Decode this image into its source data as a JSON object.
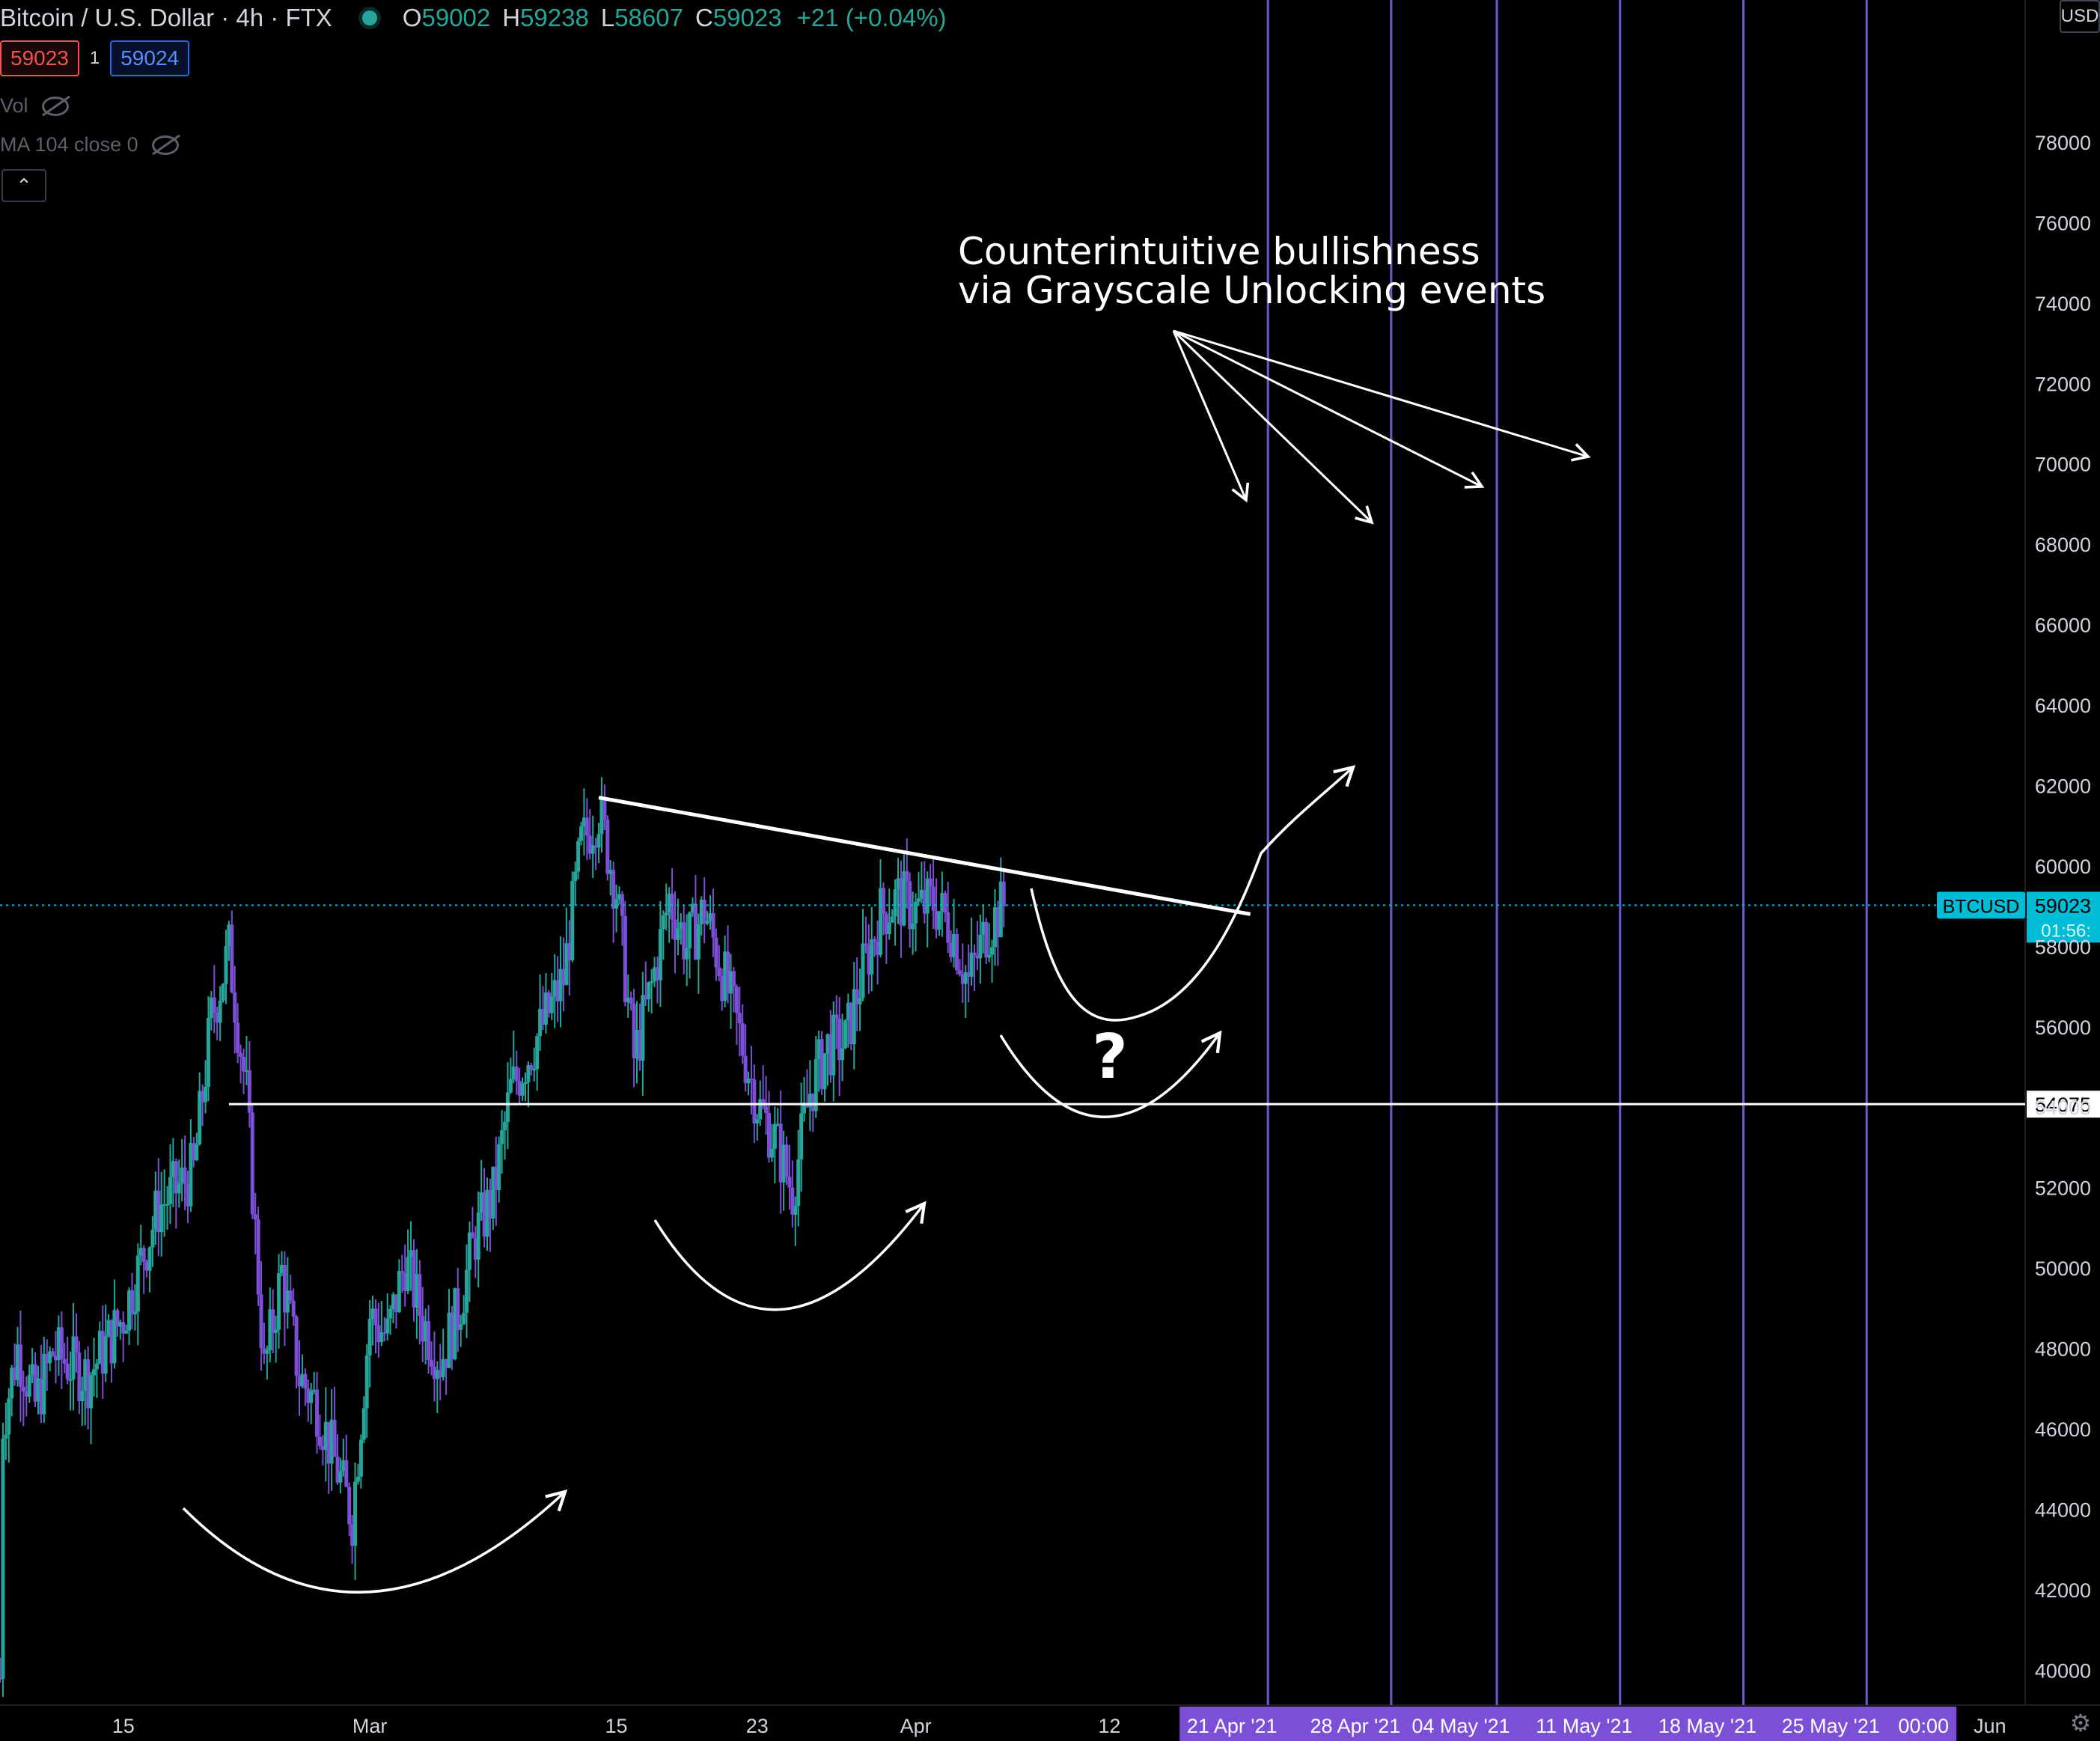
{
  "header": {
    "symbol": "Bitcoin / U.S. Dollar",
    "interval": "4h",
    "exchange": "FTX",
    "open_label": "O",
    "open": "59002",
    "high_label": "H",
    "high": "59238",
    "low_label": "L",
    "low": "58607",
    "close_label": "C",
    "close": "59023",
    "change": "+21 (+0.04%)"
  },
  "quote": {
    "bid": "59023",
    "spread": "1",
    "ask": "59024"
  },
  "indicators": {
    "vol": "Vol",
    "ma": "MA 104 close 0",
    "collapse_icon": "chevron-up-icon"
  },
  "price_axis": {
    "currency": "USD"
  },
  "colors": {
    "up": "#26a69a",
    "down": "#7b4fd6",
    "background": "#000000",
    "event_line": "#6b5cd1",
    "event_label_bg": "#7b4fd6",
    "price_label_bg": "#00bcd4",
    "annotation": "#ffffff"
  },
  "chart_data": {
    "type": "candlestick",
    "title": "Bitcoin / U.S. Dollar · 4h · FTX",
    "ylim": [
      39800,
      79600
    ],
    "yticks": [
      40000,
      42000,
      44000,
      46000,
      48000,
      50000,
      52000,
      54000,
      56000,
      58000,
      60000,
      62000,
      64000,
      66000,
      68000,
      70000,
      72000,
      74000,
      76000,
      78000
    ],
    "ytick_labels": [
      "40000",
      "42000",
      "44000",
      "46000",
      "48000",
      "50000",
      "52000",
      "54000",
      "56000",
      "58000",
      "60000",
      "62000",
      "64000",
      "66000",
      "68000",
      "70000",
      "72000",
      "74000",
      "76000",
      "78000"
    ],
    "xlim": [
      "2021-02-08",
      "2021-06-03"
    ],
    "x_axis_labels": [
      {
        "date": "2021-02-15",
        "label": "15"
      },
      {
        "date": "2021-03-01",
        "label": "Mar"
      },
      {
        "date": "2021-03-15",
        "label": "15"
      },
      {
        "date": "2021-03-23",
        "label": "23"
      },
      {
        "date": "2021-04-01",
        "label": "Apr"
      },
      {
        "date": "2021-04-12",
        "label": "12"
      },
      {
        "date": "2021-06-01",
        "label": "Jun"
      }
    ],
    "event_lines": [
      {
        "date": "2021-04-21",
        "label": "21 Apr '21"
      },
      {
        "date": "2021-04-28",
        "label": "28 Apr '21"
      },
      {
        "date": "2021-05-04",
        "label": "04 May '21"
      },
      {
        "date": "2021-05-11",
        "label": "11 May '21"
      },
      {
        "date": "2021-05-18",
        "label": "18 May '21"
      },
      {
        "date": "2021-05-25",
        "label": "25 May '21"
      }
    ],
    "event_extra_label": "00:00",
    "current_price": {
      "value": 59023,
      "symbol_label": "BTCUSD",
      "price_label": "59023",
      "countdown": "01:56:"
    },
    "support_level": {
      "value": 54075,
      "label": "54075",
      "from": "2021-02-21"
    },
    "trendline": {
      "from": {
        "x": "2021-03-14",
        "y": 61700
      },
      "to": {
        "x": "2021-04-20",
        "y": 58800
      }
    },
    "price_path": [
      [
        "2021-02-08",
        39800
      ],
      [
        "2021-02-08",
        45800
      ],
      [
        "2021-02-09",
        48000
      ],
      [
        "2021-02-10",
        46600
      ],
      [
        "2021-02-11",
        47900
      ],
      [
        "2021-02-13",
        47300
      ],
      [
        "2021-02-15",
        48800
      ],
      [
        "2021-02-17",
        51500
      ],
      [
        "2021-02-19",
        52400
      ],
      [
        "2021-02-20",
        56200
      ],
      [
        "2021-02-21",
        57900
      ],
      [
        "2021-02-22",
        54300
      ],
      [
        "2021-02-23",
        47400
      ],
      [
        "2021-02-24",
        49900
      ],
      [
        "2021-02-25",
        47300
      ],
      [
        "2021-02-26",
        46600
      ],
      [
        "2021-02-28",
        43800
      ],
      [
        "2021-03-01",
        48800
      ],
      [
        "2021-03-02",
        48300
      ],
      [
        "2021-03-03",
        50200
      ],
      [
        "2021-03-04",
        48700
      ],
      [
        "2021-03-05",
        47700
      ],
      [
        "2021-03-06",
        48900
      ],
      [
        "2021-03-07",
        50800
      ],
      [
        "2021-03-08",
        51800
      ],
      [
        "2021-03-09",
        54400
      ],
      [
        "2021-03-11",
        56200
      ],
      [
        "2021-03-12",
        57200
      ],
      [
        "2021-03-13",
        60500
      ],
      [
        "2021-03-14",
        61400
      ],
      [
        "2021-03-15",
        59400
      ],
      [
        "2021-03-16",
        55200
      ],
      [
        "2021-03-17",
        57000
      ],
      [
        "2021-03-18",
        59200
      ],
      [
        "2021-03-19",
        58000
      ],
      [
        "2021-03-20",
        58900
      ],
      [
        "2021-03-21",
        57400
      ],
      [
        "2021-03-22",
        55800
      ],
      [
        "2021-03-23",
        54100
      ],
      [
        "2021-03-24",
        53200
      ],
      [
        "2021-03-25",
        51900
      ],
      [
        "2021-03-26",
        54400
      ],
      [
        "2021-03-27",
        55500
      ],
      [
        "2021-03-28",
        55600
      ],
      [
        "2021-03-29",
        57400
      ],
      [
        "2021-03-30",
        58800
      ],
      [
        "2021-03-31",
        59200
      ],
      [
        "2021-04-01",
        58900
      ],
      [
        "2021-04-02",
        59100
      ],
      [
        "2021-04-03",
        58500
      ],
      [
        "2021-04-04",
        57100
      ],
      [
        "2021-04-05",
        58400
      ],
      [
        "2021-04-06",
        59023
      ]
    ],
    "annotations": {
      "title_line1": "Counterintuitive bullishness",
      "title_line2": "via Grayscale Unlocking events",
      "question_mark": "?"
    }
  }
}
